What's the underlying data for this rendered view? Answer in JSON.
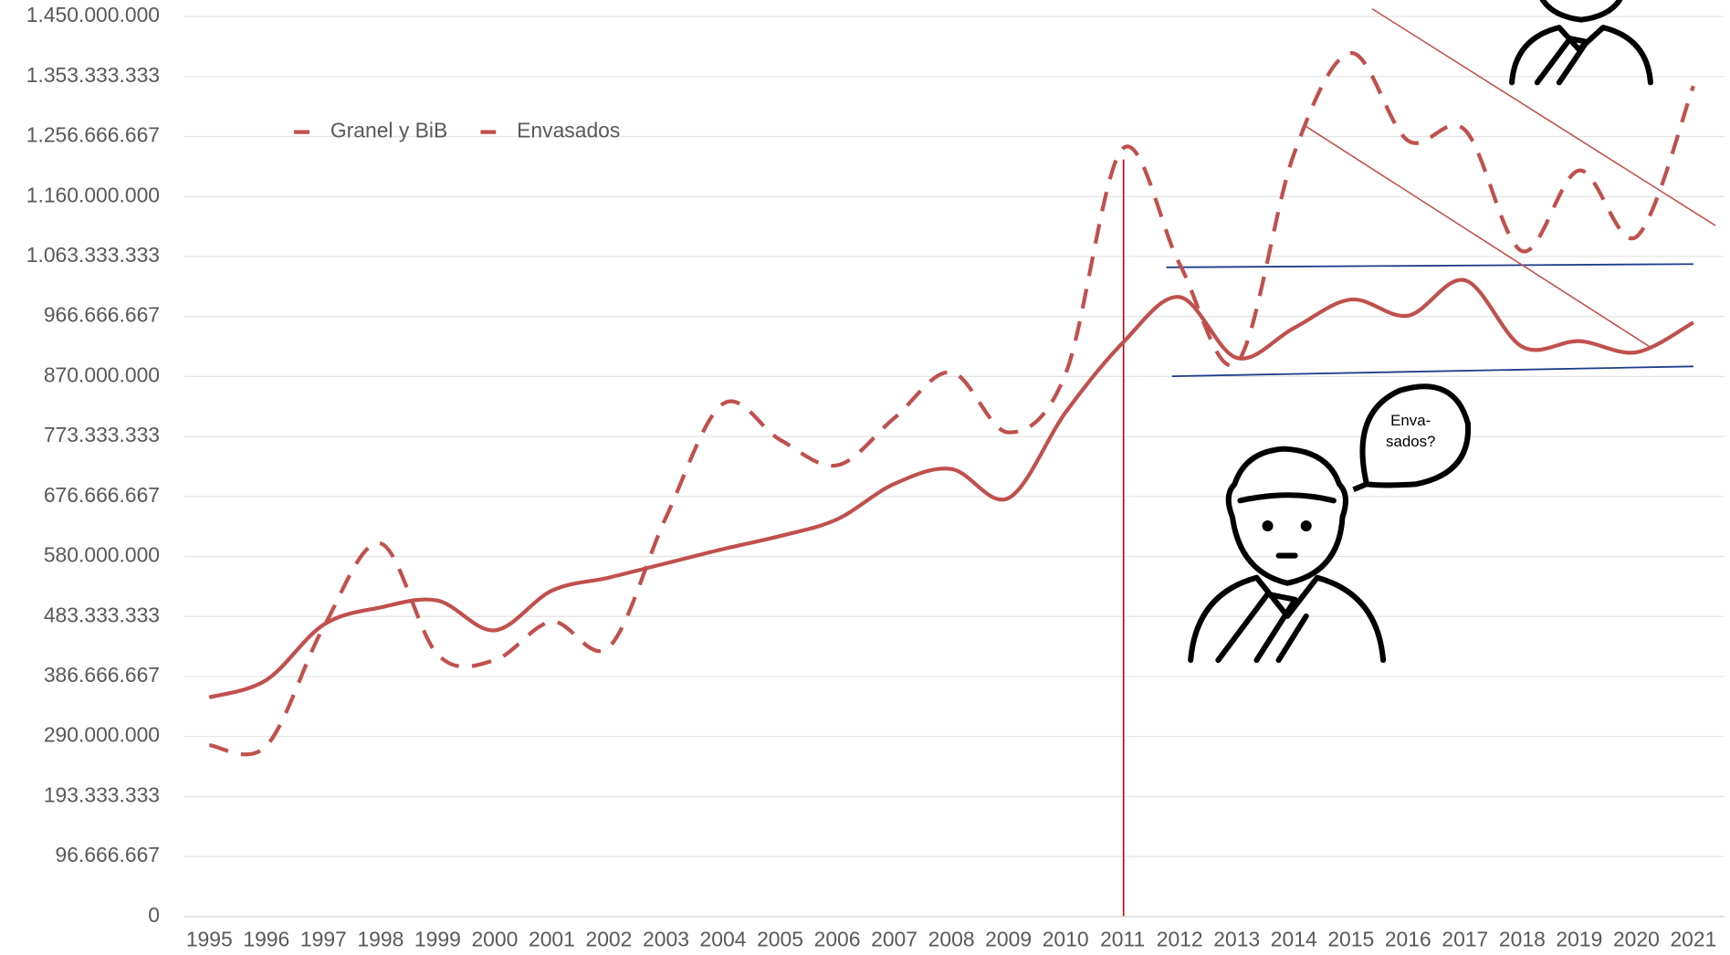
{
  "chart_data": {
    "type": "line",
    "categories": [
      "1995",
      "1996",
      "1997",
      "1998",
      "1999",
      "2000",
      "2001",
      "2002",
      "2003",
      "2004",
      "2005",
      "2006",
      "2007",
      "2008",
      "2009",
      "2010",
      "2011",
      "2012",
      "2013",
      "2014",
      "2015",
      "2016",
      "2017",
      "2018",
      "2019",
      "2020",
      "2021"
    ],
    "series": [
      {
        "name": "Granel y BiB",
        "color": "#c0504d",
        "dash": true,
        "values": [
          276000000,
          275000000,
          466000000,
          601000000,
          422000000,
          413000000,
          475000000,
          434000000,
          643000000,
          826000000,
          768000000,
          727000000,
          803000000,
          877000000,
          780000000,
          874000000,
          1237000000,
          1051000000,
          892000000,
          1228000000,
          1391000000,
          1250000000,
          1267000000,
          1072000000,
          1202000000,
          1095000000,
          1338000000
        ]
      },
      {
        "name": "Envasados",
        "color": "#c0504d",
        "dash": false,
        "values": [
          353000000,
          381000000,
          470000000,
          498000000,
          509000000,
          461000000,
          525000000,
          546000000,
          569000000,
          592000000,
          613000000,
          640000000,
          697000000,
          721000000,
          674000000,
          812000000,
          924000000,
          998000000,
          900000000,
          948000000,
          994000000,
          968000000,
          1025000000,
          918000000,
          927000000,
          909000000,
          957000000
        ]
      }
    ],
    "ylim": [
      0,
      1450000000
    ],
    "yticks": [
      0,
      {
        "value": 96666667,
        "label": "96.666.667"
      },
      {
        "value": 193333333,
        "label": "193.333.333"
      },
      {
        "value": 290000000,
        "label": "290.000.000"
      },
      {
        "value": 386666667,
        "label": "386.666.667"
      },
      {
        "value": 483333333,
        "label": "483.333.333"
      },
      {
        "value": 580000000,
        "label": "580.000.000"
      },
      {
        "value": 676666667,
        "label": "676.666.667"
      },
      {
        "value": 773333333,
        "label": "773.333.333"
      },
      {
        "value": 870000000,
        "label": "870.000.000"
      },
      {
        "value": 966666667,
        "label": "966.666.667"
      },
      {
        "value": 1063333333,
        "label": "1.063.333.333"
      },
      {
        "value": 1160000000,
        "label": "1.160.000.000"
      },
      {
        "value": 1256666667,
        "label": "1.256.666.667"
      },
      {
        "value": 1353333333,
        "label": "1.353.333.333"
      },
      {
        "value": 1450000000,
        "label": "1.450.000.000"
      }
    ],
    "grid": true,
    "legend": "top-left",
    "bubble_text": [
      "Enva-",
      "sados?"
    ]
  }
}
